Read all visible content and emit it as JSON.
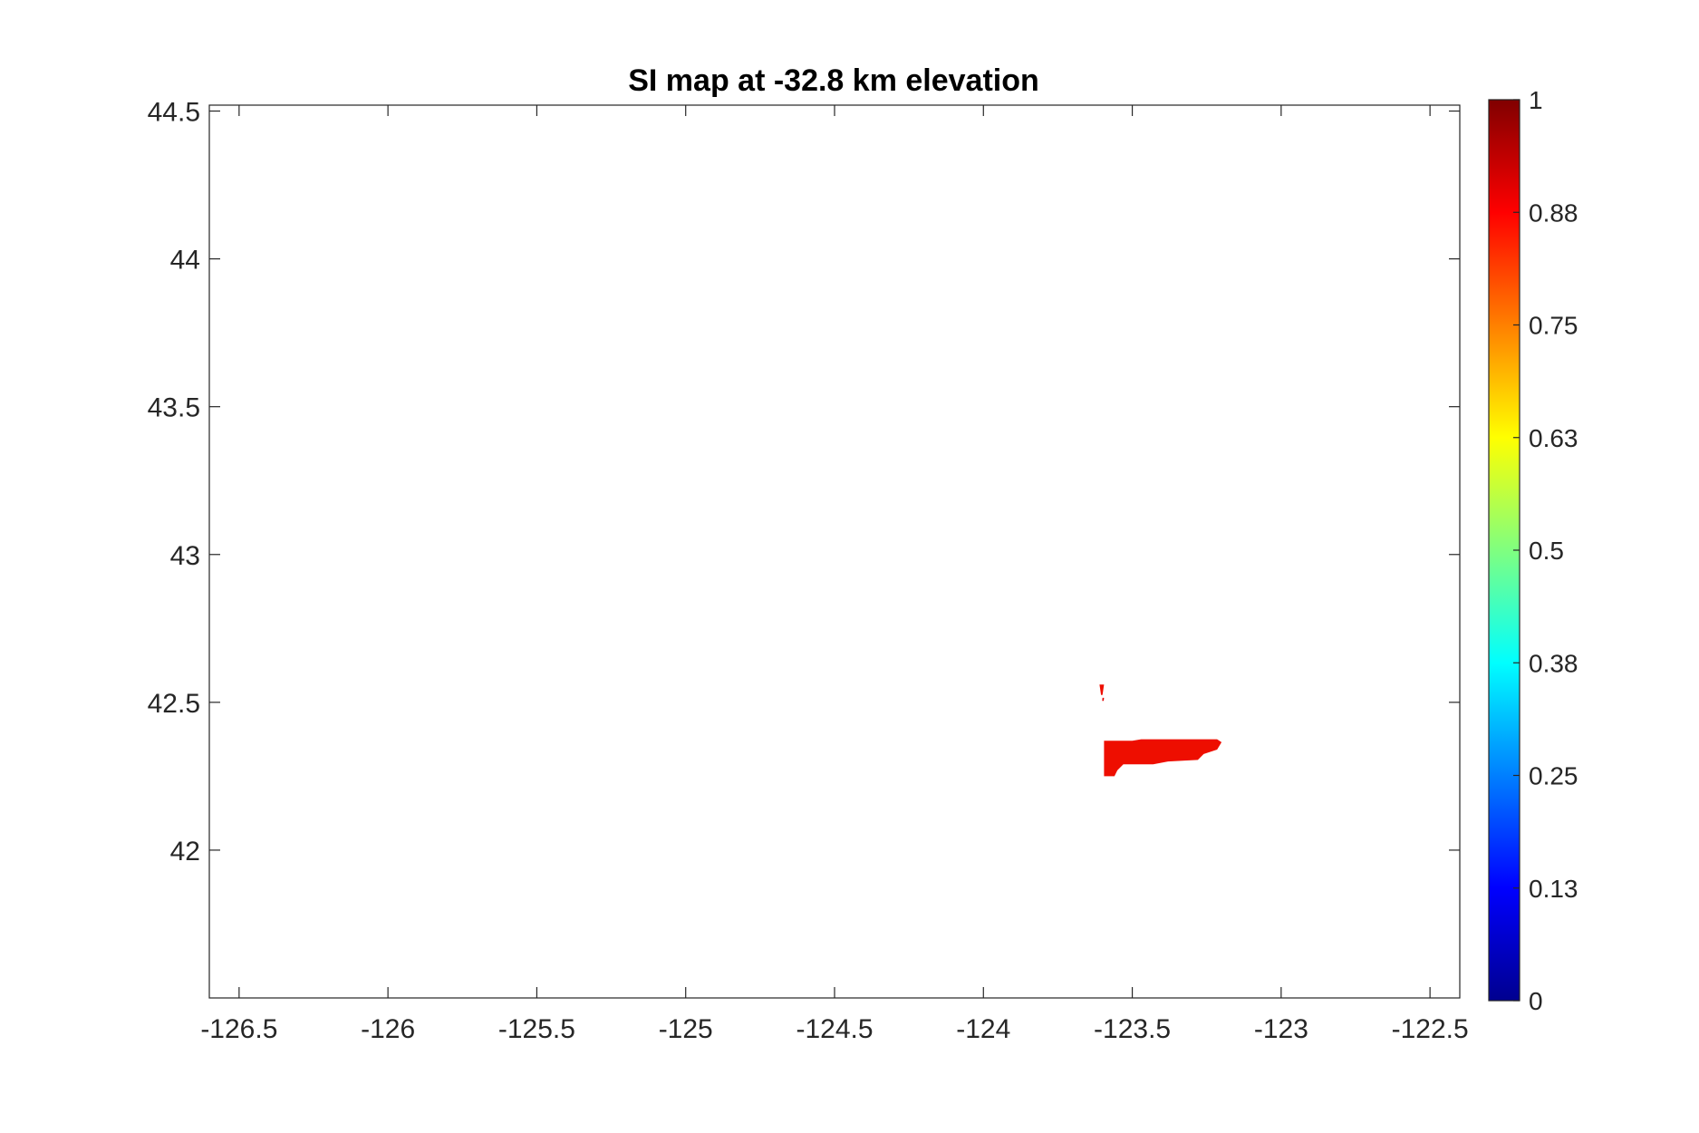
{
  "chart_data": {
    "type": "heatmap",
    "title": "SI map at -32.8 km elevation",
    "xlabel": "",
    "ylabel": "",
    "xlim": [
      -126.6,
      -122.4
    ],
    "ylim": [
      41.5,
      44.52
    ],
    "x_ticks": [
      -126.5,
      -126,
      -125.5,
      -125,
      -124.5,
      -124,
      -123.5,
      -123,
      -122.5
    ],
    "x_tick_labels": [
      "-126.5",
      "-126",
      "-125.5",
      "-125",
      "-124.5",
      "-124",
      "-123.5",
      "-123",
      "-122.5"
    ],
    "y_ticks": [
      42,
      42.5,
      43,
      43.5,
      44,
      44.5
    ],
    "y_tick_labels": [
      "42",
      "42.5",
      "43",
      "43.5",
      "44",
      "44.5"
    ],
    "grid": false,
    "colormap": "jet",
    "clim": [
      0,
      1
    ],
    "colorbar_ticks": [
      0,
      0.125,
      0.25,
      0.375,
      0.5,
      0.625,
      0.75,
      0.875,
      1
    ],
    "colorbar_tick_labels": [
      "0",
      "0.13",
      "0.25",
      "0.38",
      "0.5",
      "0.63",
      "0.75",
      "0.88",
      "1"
    ],
    "regions": [
      {
        "value": 0.93,
        "color": "#ee0e00",
        "polygon": [
          [
            -123.595,
            42.37
          ],
          [
            -123.5,
            42.37
          ],
          [
            -123.47,
            42.375
          ],
          [
            -123.215,
            42.375
          ],
          [
            -123.2,
            42.365
          ],
          [
            -123.215,
            42.34
          ],
          [
            -123.26,
            42.325
          ],
          [
            -123.28,
            42.305
          ],
          [
            -123.38,
            42.3
          ],
          [
            -123.43,
            42.29
          ],
          [
            -123.53,
            42.29
          ],
          [
            -123.55,
            42.27
          ],
          [
            -123.56,
            42.25
          ],
          [
            -123.595,
            42.25
          ]
        ]
      },
      {
        "value": 0.93,
        "color": "#ee0e00",
        "polygon": [
          [
            -123.61,
            42.56
          ],
          [
            -123.595,
            42.56
          ],
          [
            -123.6,
            42.525
          ],
          [
            -123.605,
            42.525
          ]
        ]
      },
      {
        "value": 0.95,
        "color": "#e00000",
        "polygon": [
          [
            -123.6,
            42.515
          ],
          [
            -123.595,
            42.515
          ],
          [
            -123.596,
            42.505
          ],
          [
            -123.601,
            42.505
          ]
        ]
      }
    ]
  }
}
